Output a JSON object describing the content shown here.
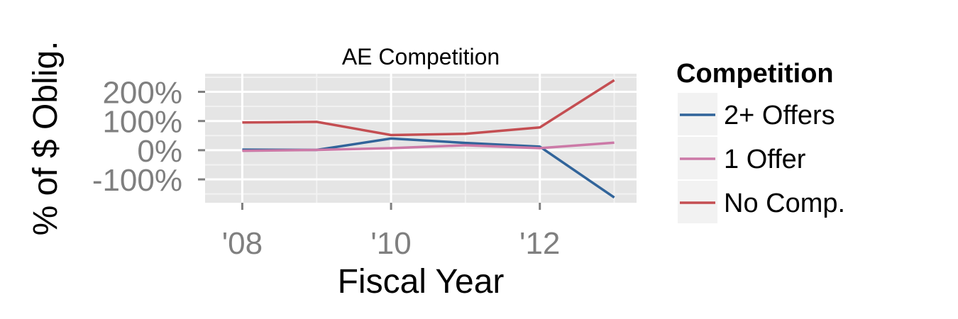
{
  "chart_data": {
    "type": "line",
    "title": "AE Competition",
    "xlabel": "Fiscal Year",
    "ylabel": "% of $ Oblig.",
    "x": [
      2008,
      2009,
      2010,
      2011,
      2012,
      2013
    ],
    "xlim": [
      2007.5,
      2013.3
    ],
    "xticks": [
      2008,
      2010,
      2012
    ],
    "xtick_labels": [
      "'08",
      "'10",
      "'12"
    ],
    "ylim": [
      -180,
      262
    ],
    "yticks": [
      200,
      100,
      0,
      -100
    ],
    "ytick_labels": [
      "200%",
      "100%",
      "0%",
      "-100%"
    ],
    "grid": true,
    "legend": {
      "title": "Competition",
      "position": "right"
    },
    "series": [
      {
        "name": "2+ Offers",
        "color": "#31649a",
        "values": [
          2,
          1,
          40,
          25,
          12,
          -162
        ]
      },
      {
        "name": "1 Offer",
        "color": "#cc79a7",
        "values": [
          -2,
          1,
          7,
          17,
          7,
          26
        ]
      },
      {
        "name": "No Comp.",
        "color": "#c44e52",
        "values": [
          95,
          97,
          52,
          56,
          78,
          240
        ]
      }
    ]
  }
}
